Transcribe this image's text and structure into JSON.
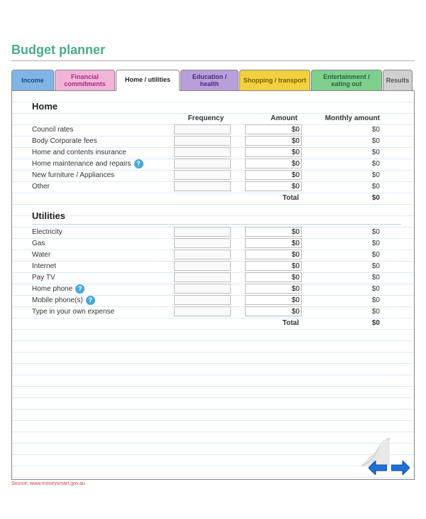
{
  "title": "Budget planner",
  "colors": {
    "title": "#4aaa8b",
    "tab_income": "#7fb4e8",
    "tab_financial": "#f2b5d9",
    "tab_home": "#ffffff",
    "tab_education": "#b89fd9",
    "tab_shopping": "#f2d140",
    "tab_entertainment": "#7fcf8f",
    "tab_results": "#d0d0d0",
    "arrow": "#1f6fd6",
    "help_icon": "#4aa8d8",
    "line_rule": "#dde8ff"
  },
  "tabs": {
    "income": "Income",
    "financial": "Financial commitments",
    "home": "Home / utilities",
    "education": "Education / health",
    "shopping": "Shopping / transport",
    "entertainment": "Entertainment / eating out",
    "results": "Results"
  },
  "columns": {
    "frequency": "Frequency",
    "amount": "Amount",
    "monthly": "Monthly amount",
    "total": "Total"
  },
  "sections": {
    "home": {
      "heading": "Home",
      "rows": [
        {
          "label": "Council rates",
          "amount": "$0",
          "monthly": "$0",
          "help": false
        },
        {
          "label": "Body Corporate fees",
          "amount": "$0",
          "monthly": "$0",
          "help": false
        },
        {
          "label": "Home and contents insurance",
          "amount": "$0",
          "monthly": "$0",
          "help": false
        },
        {
          "label": "Home maintenance and repairs",
          "amount": "$0",
          "monthly": "$0",
          "help": true
        },
        {
          "label": "New furniture / Appliances",
          "amount": "$0",
          "monthly": "$0",
          "help": false
        },
        {
          "label": "Other",
          "amount": "$0",
          "monthly": "$0",
          "help": false
        }
      ],
      "total": "$0"
    },
    "utilities": {
      "heading": "Utilities",
      "rows": [
        {
          "label": "Electricity",
          "amount": "$0",
          "monthly": "$0",
          "help": false
        },
        {
          "label": "Gas",
          "amount": "$0",
          "monthly": "$0",
          "help": false
        },
        {
          "label": "Water",
          "amount": "$0",
          "monthly": "$0",
          "help": false
        },
        {
          "label": "Internet",
          "amount": "$0",
          "monthly": "$0",
          "help": false
        },
        {
          "label": "Pay TV",
          "amount": "$0",
          "monthly": "$0",
          "help": false
        },
        {
          "label": "Home phone",
          "amount": "$0",
          "monthly": "$0",
          "help": true
        },
        {
          "label": "Mobile phone(s)",
          "amount": "$0",
          "monthly": "$0",
          "help": true
        },
        {
          "label": "Type in your own expense",
          "amount": "$0",
          "monthly": "$0",
          "help": false
        }
      ],
      "total": "$0"
    }
  },
  "source_line": "Source: www.moneysmart.gov.au"
}
